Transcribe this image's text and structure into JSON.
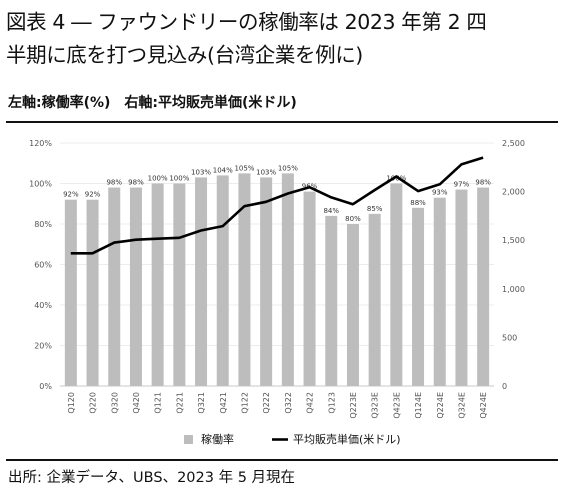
{
  "figure": {
    "title_line1": "図表 4 ― ファウンドリーの稼働率は 2023 年第 2 四",
    "title_line2": "半期に底を打つ見込み(台湾企業を例に)",
    "axis_note": "左軸:稼働率(%)　右軸:平均販売単価(米ドル)",
    "source": "出所: 企業データ、UBS、2023 年 5 月現在"
  },
  "colors": {
    "bar": "#bdbdbd",
    "line": "#000000",
    "gridline": "#d9d9d9",
    "axis_text": "#555555"
  },
  "chart_data": {
    "type": "bar",
    "categories": [
      "Q120",
      "Q220",
      "Q320",
      "Q420",
      "Q121",
      "Q221",
      "Q321",
      "Q421",
      "Q122",
      "Q222",
      "Q322",
      "Q422",
      "Q123",
      "Q223E",
      "Q323E",
      "Q423E",
      "Q124E",
      "Q224E",
      "Q324E",
      "Q424E"
    ],
    "series": [
      {
        "name": "稼働率",
        "type": "bar",
        "axis": "left",
        "values": [
          92,
          92,
          98,
          98,
          100,
          100,
          103,
          104,
          105,
          103,
          105,
          96,
          84,
          80,
          85,
          100,
          88,
          93,
          97,
          98
        ],
        "data_labels": [
          "92%",
          "92%",
          "98%",
          "98%",
          "100%",
          "100%",
          "103%",
          "104%",
          "105%",
          "103%",
          "105%",
          "96%",
          "84%",
          "80%",
          "85%",
          "100%",
          "88%",
          "93%",
          "97%",
          "98%"
        ]
      },
      {
        "name": "平均販売単価(米ドル)",
        "type": "line",
        "axis": "right",
        "values": [
          1365,
          1365,
          1475,
          1505,
          1515,
          1525,
          1600,
          1645,
          1850,
          1895,
          1980,
          2045,
          1940,
          1870,
          2015,
          2155,
          2005,
          2075,
          2280,
          2350
        ]
      }
    ],
    "left_axis": {
      "ticks": [
        "0%",
        "20%",
        "40%",
        "60%",
        "80%",
        "100%",
        "120%"
      ],
      "range": [
        0,
        120
      ]
    },
    "right_axis": {
      "ticks": [
        "0",
        "500",
        "1,000",
        "1,500",
        "2,000",
        "2,500"
      ],
      "range": [
        0,
        2500
      ]
    },
    "grid": "horizontal",
    "legend": {
      "position": "bottom",
      "items": [
        "稼働率",
        "平均販売単価(米ドル)"
      ]
    }
  }
}
